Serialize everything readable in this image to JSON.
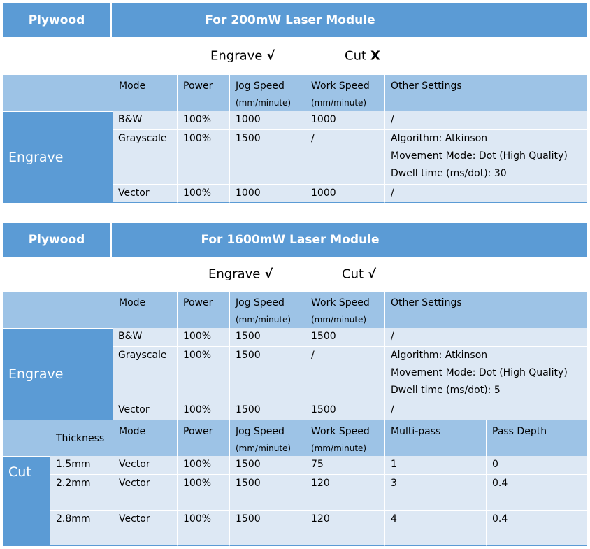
{
  "table1": {
    "material": "Plywood",
    "module": "For 200mW Laser Module",
    "engrave_label": "Engrave",
    "engrave_mark": "√",
    "cut_label": "Cut",
    "cut_mark": "X",
    "headers": [
      "Mode",
      "Power",
      "Jog Speed",
      "(mm/minute)",
      "Work Speed",
      "(mm/minute)",
      "Other Settings"
    ],
    "section": "Engrave",
    "rows": [
      {
        "mode": "B&W",
        "power": "100%",
        "jog": "1000",
        "work": "1000",
        "other": [
          "/"
        ]
      },
      {
        "mode": "Grayscale",
        "power": "100%",
        "jog": "1500",
        "work": "/",
        "other": [
          "Algorithm: Atkinson",
          "Movement Mode: Dot (High Quality)",
          "Dwell time (ms/dot): 30"
        ]
      },
      {
        "mode": "Vector",
        "power": "100%",
        "jog": "1000",
        "work": "1000",
        "other": [
          "/"
        ]
      }
    ]
  },
  "table2": {
    "material": "Plywood",
    "module": "For 1600mW Laser Module",
    "engrave_label": "Engrave",
    "engrave_mark": "√",
    "cut_label": "Cut",
    "cut_mark": "√",
    "headers": [
      "Mode",
      "Power",
      "Jog Speed",
      "(mm/minute)",
      "Work Speed",
      "(mm/minute)",
      "Other Settings"
    ],
    "section": "Engrave",
    "rows": [
      {
        "mode": "B&W",
        "power": "100%",
        "jog": "1500",
        "work": "1500",
        "other": [
          "/"
        ]
      },
      {
        "mode": "Grayscale",
        "power": "100%",
        "jog": "1500",
        "work": "/",
        "other": [
          "Algorithm: Atkinson",
          "Movement Mode: Dot (High Quality)",
          "Dwell time (ms/dot): 5"
        ]
      },
      {
        "mode": "Vector",
        "power": "100%",
        "jog": "1500",
        "work": "1500",
        "other": [
          "/"
        ]
      }
    ],
    "cut_section": "Cut",
    "cut_headers": [
      "Thickness",
      "Mode",
      "Power",
      "Jog Speed",
      "(mm/minute)",
      "Work Speed",
      "(mm/minute)",
      "Multi-pass",
      "Pass Depth"
    ],
    "cut_rows": [
      {
        "thickness": "1.5mm",
        "mode": "Vector",
        "power": "100%",
        "jog": "1500",
        "work": "75",
        "passes": "1",
        "depth": "0"
      },
      {
        "thickness": "2.2mm",
        "mode": "Vector",
        "power": "100%",
        "jog": "1500",
        "work": "120",
        "passes": "3",
        "depth": "0.4"
      },
      {
        "thickness": "2.8mm",
        "mode": "Vector",
        "power": "100%",
        "jog": "1500",
        "work": "120",
        "passes": "4",
        "depth": "0.4"
      }
    ]
  }
}
